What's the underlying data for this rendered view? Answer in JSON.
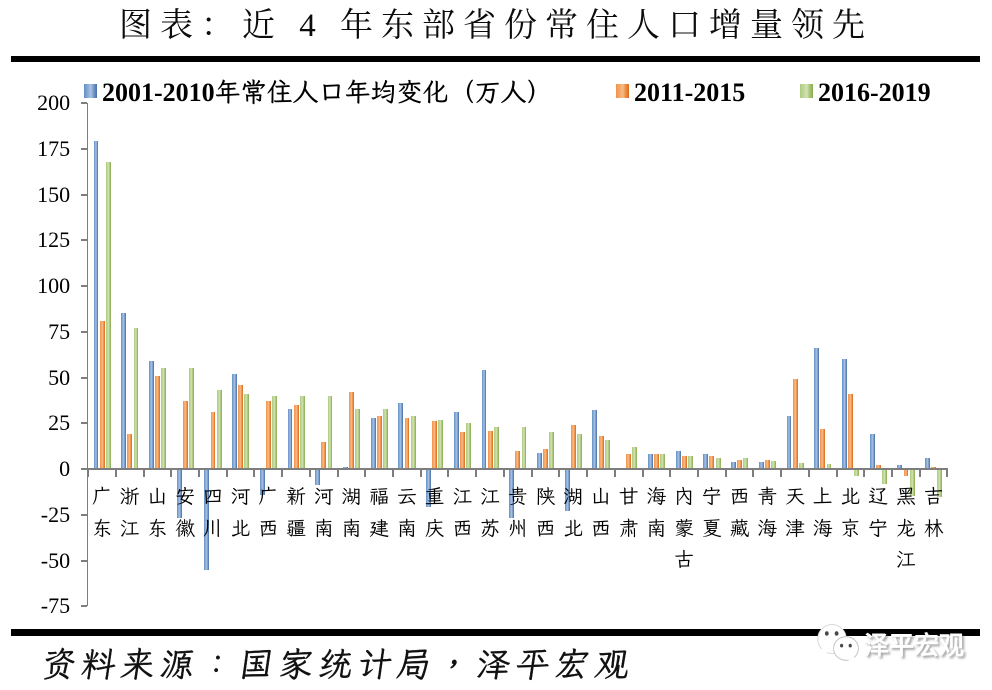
{
  "title": "图表：近 4 年东部省份常住人口增量领先",
  "source_note": "资料来源：国家统计局，泽平宏观",
  "logo": {
    "text": "泽平宏观",
    "icon": "wechat-icon"
  },
  "chart_data": {
    "type": "bar",
    "categories": [
      "广东",
      "浙江",
      "山东",
      "安徽",
      "四川",
      "河北",
      "广西",
      "新疆",
      "河南",
      "湖南",
      "福建",
      "云南",
      "重庆",
      "江西",
      "江苏",
      "贵州",
      "陕西",
      "湖北",
      "山西",
      "甘肃",
      "海南",
      "内蒙古",
      "宁夏",
      "西藏",
      "青海",
      "天津",
      "上海",
      "北京",
      "辽宁",
      "黑龙江",
      "吉林"
    ],
    "series": [
      {
        "name": "2001-2010年常住人口年均变化（万人）",
        "color": "#4f81bd",
        "values": [
          179,
          85,
          59,
          -27,
          -55,
          52,
          -14,
          33,
          -8.5,
          1,
          28,
          36,
          -21,
          31,
          54,
          -27,
          9,
          -23,
          32,
          0,
          8,
          10,
          8,
          4,
          4,
          29,
          66,
          60,
          19,
          2,
          6
        ]
      },
      {
        "name": "2011-2015",
        "color": "#ed7d31",
        "values": [
          81,
          19,
          51,
          37,
          31,
          46,
          37,
          35,
          15,
          42,
          29,
          28,
          26,
          20,
          21,
          10,
          11,
          24,
          18,
          8,
          8,
          7,
          7,
          5,
          5,
          49,
          22,
          41,
          2,
          -4,
          1
        ]
      },
      {
        "name": "2016-2019",
        "color": "#9bbb59",
        "values": [
          168,
          77,
          55,
          55,
          43,
          41,
          40,
          40,
          40,
          33,
          33,
          29,
          27,
          25,
          23,
          23,
          20,
          19,
          16,
          12,
          8,
          7,
          6,
          6,
          4.5,
          3.5,
          3,
          -4,
          -8,
          -15,
          -15.5
        ]
      }
    ],
    "ylabel": "",
    "xlabel": "",
    "ylim": [
      -75,
      200
    ],
    "ytick_step": 25,
    "grid": false,
    "legend_position": "top"
  }
}
